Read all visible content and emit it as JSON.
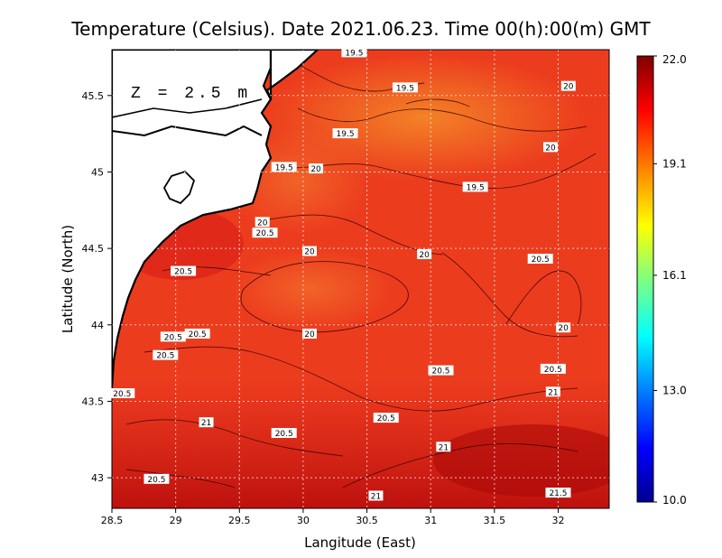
{
  "title": "Temperature (Celsius). Date 2021.06.23. Time 00(h):00(m) GMT",
  "depth_label": "Z = 2.5 m",
  "x_axis": {
    "label": "Langitude (East)",
    "ticks": [
      "28.5",
      "29",
      "29.5",
      "30",
      "30.5",
      "31",
      "31.5",
      "32"
    ],
    "range": [
      28.5,
      32.4
    ]
  },
  "y_axis": {
    "label": "Latitude (North)",
    "ticks": [
      "43",
      "43.5",
      "44",
      "44.5",
      "45",
      "45.5"
    ],
    "range": [
      42.8,
      45.8
    ]
  },
  "colorbar": {
    "ticks": [
      "22.0",
      "19.1",
      "16.1",
      "13.0",
      "10.0"
    ],
    "min": 10.0,
    "max": 22.0,
    "colors": [
      "#00008f",
      "#0000ff",
      "#0080ff",
      "#00ffff",
      "#80ff80",
      "#ffff00",
      "#ff8000",
      "#ff0000",
      "#800000"
    ]
  },
  "contour_labels": [
    {
      "text": "19.5",
      "lon": 30.4,
      "lat": 45.78
    },
    {
      "text": "19.5",
      "lon": 30.8,
      "lat": 45.55
    },
    {
      "text": "20",
      "lon": 32.08,
      "lat": 45.56
    },
    {
      "text": "19.5",
      "lon": 30.33,
      "lat": 45.25
    },
    {
      "text": "19.5",
      "lon": 29.85,
      "lat": 45.03
    },
    {
      "text": "20",
      "lon": 30.1,
      "lat": 45.02
    },
    {
      "text": "20",
      "lon": 31.94,
      "lat": 45.16
    },
    {
      "text": "19.5",
      "lon": 31.35,
      "lat": 44.9
    },
    {
      "text": "20",
      "lon": 29.68,
      "lat": 44.67
    },
    {
      "text": "20.5",
      "lon": 29.7,
      "lat": 44.6
    },
    {
      "text": "20",
      "lon": 30.05,
      "lat": 44.48
    },
    {
      "text": "20",
      "lon": 30.95,
      "lat": 44.46
    },
    {
      "text": "20.5",
      "lon": 31.86,
      "lat": 44.43
    },
    {
      "text": "20.5",
      "lon": 29.06,
      "lat": 44.35
    },
    {
      "text": "20",
      "lon": 32.04,
      "lat": 43.98
    },
    {
      "text": "20",
      "lon": 30.05,
      "lat": 43.94
    },
    {
      "text": "20.5",
      "lon": 29.17,
      "lat": 43.94
    },
    {
      "text": "20.5",
      "lon": 28.98,
      "lat": 43.92
    },
    {
      "text": "20.5",
      "lon": 28.92,
      "lat": 43.8
    },
    {
      "text": "20.5",
      "lon": 31.08,
      "lat": 43.7
    },
    {
      "text": "20.5",
      "lon": 31.96,
      "lat": 43.71
    },
    {
      "text": "21",
      "lon": 31.96,
      "lat": 43.56
    },
    {
      "text": "20.5",
      "lon": 28.58,
      "lat": 43.55
    },
    {
      "text": "20.5",
      "lon": 30.65,
      "lat": 43.39
    },
    {
      "text": "21",
      "lon": 29.24,
      "lat": 43.36
    },
    {
      "text": "20.5",
      "lon": 29.85,
      "lat": 43.29
    },
    {
      "text": "21",
      "lon": 31.1,
      "lat": 43.2
    },
    {
      "text": "20.5",
      "lon": 28.85,
      "lat": 42.99
    },
    {
      "text": "21",
      "lon": 30.57,
      "lat": 42.88
    },
    {
      "text": "21.5",
      "lon": 32.0,
      "lat": 42.9
    }
  ]
}
